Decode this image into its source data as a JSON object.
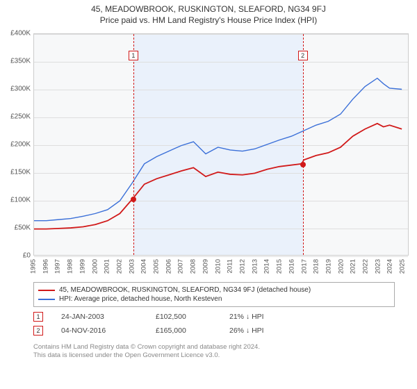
{
  "titles": {
    "line1": "45, MEADOWBROOK, RUSKINGTON, SLEAFORD, NG34 9FJ",
    "line2": "Price paid vs. HM Land Registry's House Price Index (HPI)"
  },
  "chart": {
    "type": "line",
    "plot_bg": "#f7f8f9",
    "border_color": "#cccccc",
    "grid_color": "#dedede",
    "shaded_bg": "#eaf1fb",
    "xlim": [
      1995,
      2025.5
    ],
    "x_ticks": [
      1995,
      1996,
      1997,
      1998,
      1999,
      2000,
      2001,
      2002,
      2003,
      2004,
      2005,
      2006,
      2007,
      2008,
      2009,
      2010,
      2011,
      2012,
      2013,
      2014,
      2015,
      2016,
      2017,
      2018,
      2019,
      2020,
      2021,
      2022,
      2023,
      2024,
      2025
    ],
    "ylim": [
      0,
      400000
    ],
    "y_ticks": [
      0,
      50000,
      100000,
      150000,
      200000,
      250000,
      300000,
      350000,
      400000
    ],
    "y_tick_labels": [
      "£0",
      "£50K",
      "£100K",
      "£150K",
      "£200K",
      "£250K",
      "£300K",
      "£350K",
      "£400K"
    ],
    "series": {
      "property": {
        "label": "45, MEADOWBROOK, RUSKINGTON, SLEAFORD, NG34 9FJ (detached house)",
        "color": "#d11919",
        "width": 1.8,
        "data": [
          [
            1995,
            47000
          ],
          [
            1996,
            47000
          ],
          [
            1997,
            48000
          ],
          [
            1998,
            49000
          ],
          [
            1999,
            51000
          ],
          [
            2000,
            55000
          ],
          [
            2001,
            62000
          ],
          [
            2002,
            75000
          ],
          [
            2003.07,
            102500
          ],
          [
            2004,
            128000
          ],
          [
            2005,
            138000
          ],
          [
            2006,
            145000
          ],
          [
            2007,
            152000
          ],
          [
            2008,
            158000
          ],
          [
            2009,
            142000
          ],
          [
            2010,
            150000
          ],
          [
            2011,
            146000
          ],
          [
            2012,
            145000
          ],
          [
            2013,
            148000
          ],
          [
            2014,
            155000
          ],
          [
            2015,
            160000
          ],
          [
            2016.84,
            165000
          ],
          [
            2017,
            172000
          ],
          [
            2018,
            180000
          ],
          [
            2019,
            185000
          ],
          [
            2020,
            195000
          ],
          [
            2021,
            215000
          ],
          [
            2022,
            228000
          ],
          [
            2023,
            238000
          ],
          [
            2023.5,
            232000
          ],
          [
            2024,
            235000
          ],
          [
            2025,
            228000
          ]
        ]
      },
      "hpi": {
        "label": "HPI: Average price, detached house, North Kesteven",
        "color": "#3a6fd8",
        "width": 1.4,
        "data": [
          [
            1995,
            62000
          ],
          [
            1996,
            62000
          ],
          [
            1997,
            64000
          ],
          [
            1998,
            66000
          ],
          [
            1999,
            70000
          ],
          [
            2000,
            75000
          ],
          [
            2001,
            82000
          ],
          [
            2002,
            98000
          ],
          [
            2003,
            130000
          ],
          [
            2004,
            165000
          ],
          [
            2005,
            178000
          ],
          [
            2006,
            188000
          ],
          [
            2007,
            198000
          ],
          [
            2008,
            205000
          ],
          [
            2009,
            183000
          ],
          [
            2010,
            195000
          ],
          [
            2011,
            190000
          ],
          [
            2012,
            188000
          ],
          [
            2013,
            192000
          ],
          [
            2014,
            200000
          ],
          [
            2015,
            208000
          ],
          [
            2016,
            215000
          ],
          [
            2017,
            225000
          ],
          [
            2018,
            235000
          ],
          [
            2019,
            242000
          ],
          [
            2020,
            255000
          ],
          [
            2021,
            282000
          ],
          [
            2022,
            305000
          ],
          [
            2023,
            320000
          ],
          [
            2023.5,
            310000
          ],
          [
            2024,
            302000
          ],
          [
            2025,
            300000
          ]
        ]
      }
    },
    "sale_markers": [
      {
        "n": "1",
        "x": 2003.07,
        "y": 102500,
        "color": "#d11919",
        "box_top": 24
      },
      {
        "n": "2",
        "x": 2016.84,
        "y": 165000,
        "color": "#d11919",
        "box_top": 24
      }
    ],
    "shaded_range": [
      2003.07,
      2016.84
    ]
  },
  "legend": {
    "items": [
      {
        "color": "#d11919",
        "key": "property"
      },
      {
        "color": "#3a6fd8",
        "key": "hpi"
      }
    ]
  },
  "sales_table": {
    "rows": [
      {
        "n": "1",
        "color": "#d11919",
        "date": "24-JAN-2003",
        "price": "£102,500",
        "diff": "21% ↓ HPI"
      },
      {
        "n": "2",
        "color": "#d11919",
        "date": "04-NOV-2016",
        "price": "£165,000",
        "diff": "26% ↓ HPI"
      }
    ]
  },
  "footer": {
    "line1": "Contains HM Land Registry data © Crown copyright and database right 2024.",
    "line2": "This data is licensed under the Open Government Licence v3.0."
  }
}
